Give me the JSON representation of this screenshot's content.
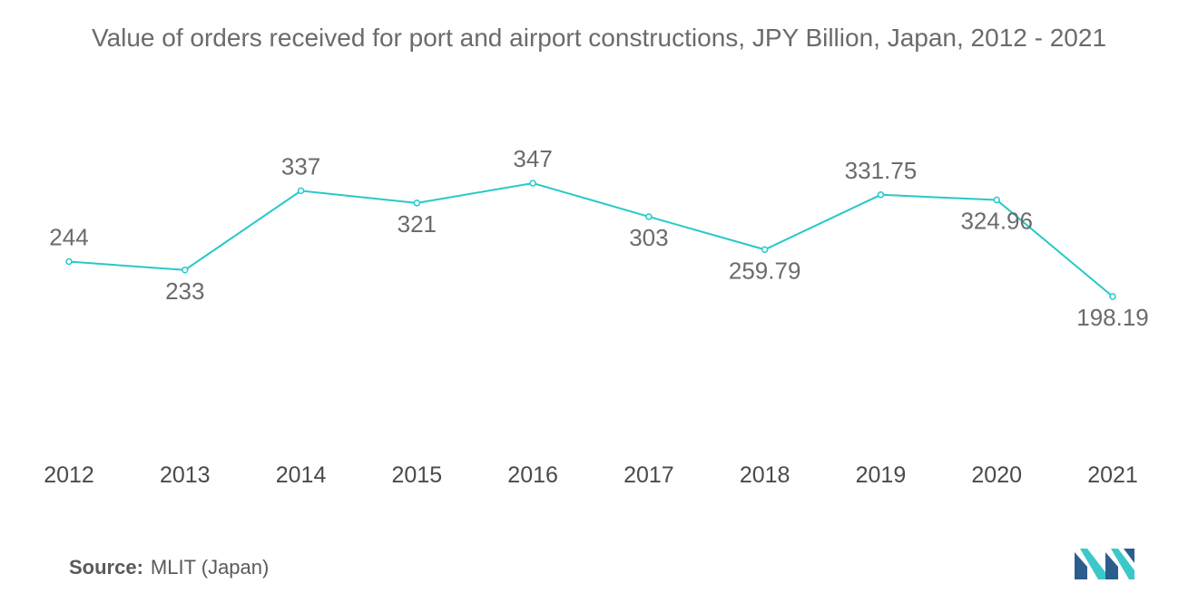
{
  "colors": {
    "line": "#26c9c9",
    "text": "#6b6b6b",
    "logo_dark": "#2b5e8c",
    "logo_light": "#3cc8c8"
  },
  "source": {
    "label": "Source:",
    "text": "MLIT (Japan)"
  },
  "logo": {
    "icon": "mordor-intelligence-logo-icon"
  },
  "chart_data": {
    "type": "line",
    "title": "Value of orders received for port and airport constructions, JPY Billion, Japan, 2012 - 2021",
    "xlabel": "",
    "ylabel": "",
    "grid": false,
    "categories": [
      "2012",
      "2013",
      "2014",
      "2015",
      "2016",
      "2017",
      "2018",
      "2019",
      "2020",
      "2021"
    ],
    "series": [
      {
        "values": [
          244,
          233,
          337,
          321,
          347,
          303,
          259.79,
          331.75,
          324.96,
          198.19
        ],
        "labels": [
          "244",
          "233",
          "337",
          "321",
          "347",
          "303",
          "259.79",
          "331.75",
          "324.96",
          "198.19"
        ]
      }
    ]
  }
}
